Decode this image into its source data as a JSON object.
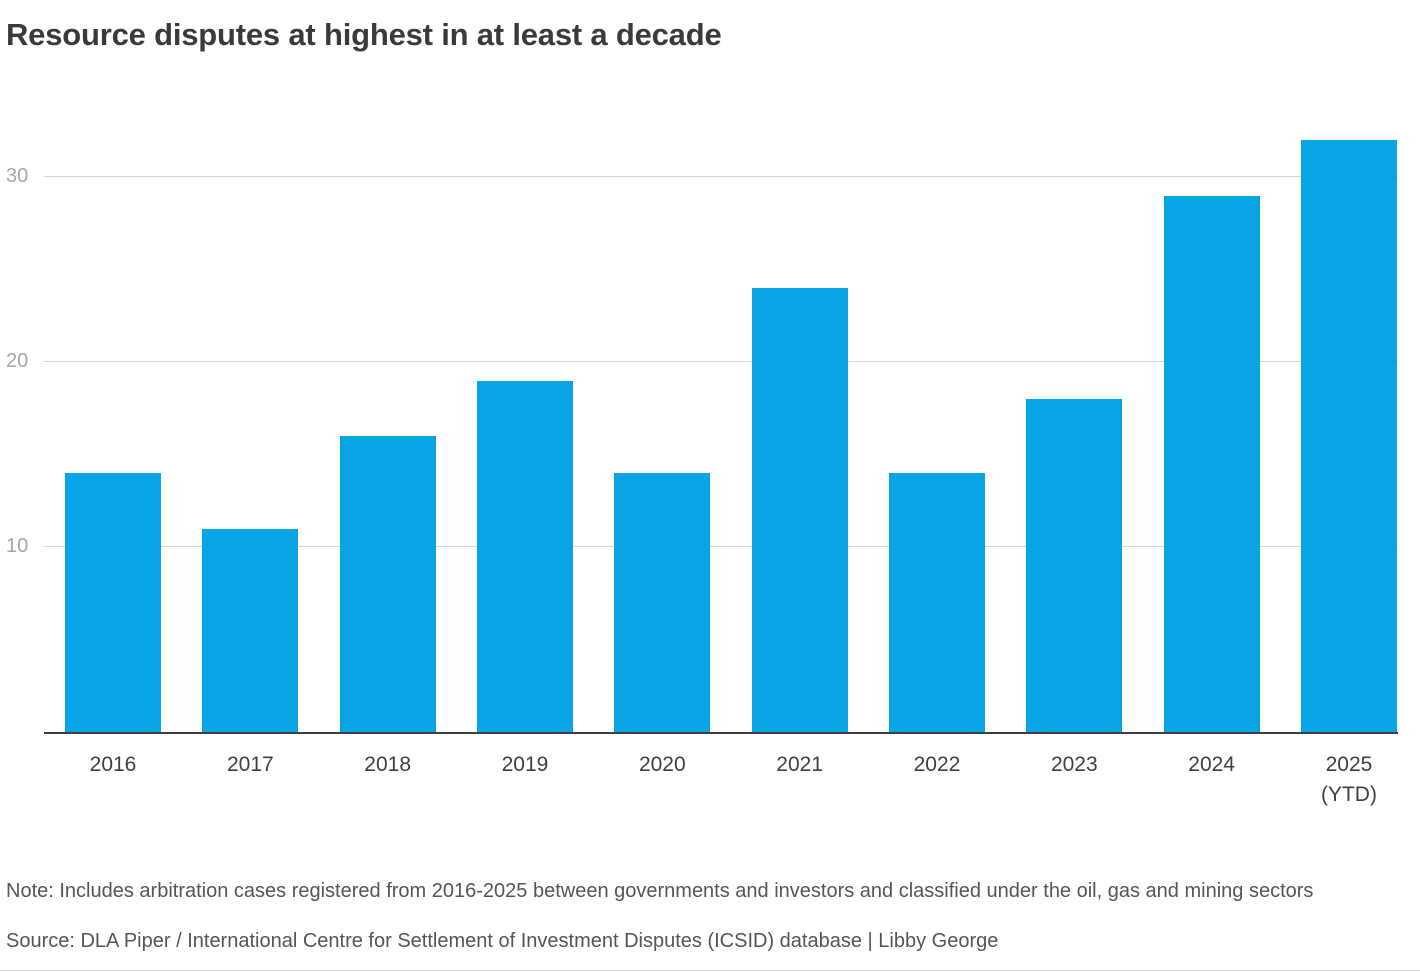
{
  "title": "Resource disputes at highest in at least a decade",
  "note": "Note: Includes arbitration cases registered from 2016-2025 between governments and investors and classified under the oil, gas and mining sectors",
  "source": "Source: DLA Piper / International Centre for Settlement of Investment Disputes (ICSID) database | Libby George",
  "colors": {
    "bar": "#08a5e6",
    "grid": "#d6d6d6",
    "axis": "#3f3f3f",
    "tick_label": "#a6a6a6",
    "category_label": "#3f3f3f"
  },
  "chart_data": {
    "type": "bar",
    "categories": [
      "2016",
      "2017",
      "2018",
      "2019",
      "2020",
      "2021",
      "2022",
      "2023",
      "2024",
      "2025\n(YTD)"
    ],
    "values": [
      14,
      11,
      16,
      19,
      14,
      24,
      14,
      18,
      29,
      32
    ],
    "title": "Resource disputes at highest in at least a decade",
    "xlabel": "",
    "ylabel": "",
    "ylim": [
      0,
      34
    ],
    "yticks": [
      10,
      20,
      30
    ],
    "grid": true,
    "legend": "none"
  }
}
